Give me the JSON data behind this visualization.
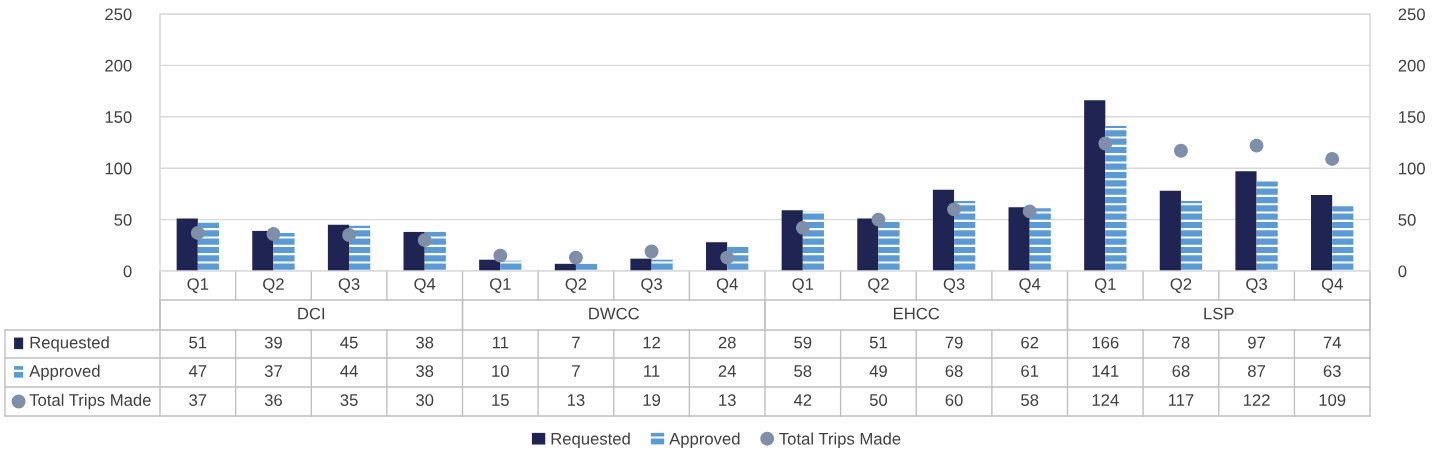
{
  "chart_data": {
    "type": "bar",
    "categories": [
      "Q1",
      "Q2",
      "Q3",
      "Q4",
      "Q1",
      "Q2",
      "Q3",
      "Q4",
      "Q1",
      "Q2",
      "Q3",
      "Q4",
      "Q1",
      "Q2",
      "Q3",
      "Q4"
    ],
    "annotations": [
      "DCI",
      "DWCC",
      "EHCC",
      "LSP"
    ],
    "series": [
      {
        "name": "Requested",
        "color": "#1f2452",
        "values": [
          51,
          39,
          45,
          38,
          11,
          7,
          12,
          28,
          59,
          51,
          79,
          62,
          166,
          78,
          97,
          74
        ]
      },
      {
        "name": "Approved",
        "color": "#5b9bd5",
        "values": [
          47,
          37,
          44,
          38,
          10,
          7,
          11,
          24,
          58,
          49,
          68,
          61,
          141,
          68,
          87,
          63
        ]
      },
      {
        "name": "Total Trips Made",
        "type": "scatter",
        "color": "#7f8fa9",
        "values": [
          37,
          36,
          35,
          30,
          15,
          13,
          19,
          13,
          42,
          50,
          60,
          58,
          124,
          117,
          122,
          109
        ]
      }
    ],
    "ylim": [
      0,
      250
    ],
    "yticks": [
      0,
      50,
      100,
      150,
      200,
      250
    ],
    "y2lim": [
      0,
      250
    ],
    "y2ticks": [
      0,
      50,
      100,
      150,
      200,
      250
    ],
    "grid": "y",
    "legend": "bottom",
    "data_labels": true,
    "marker": "circle"
  }
}
